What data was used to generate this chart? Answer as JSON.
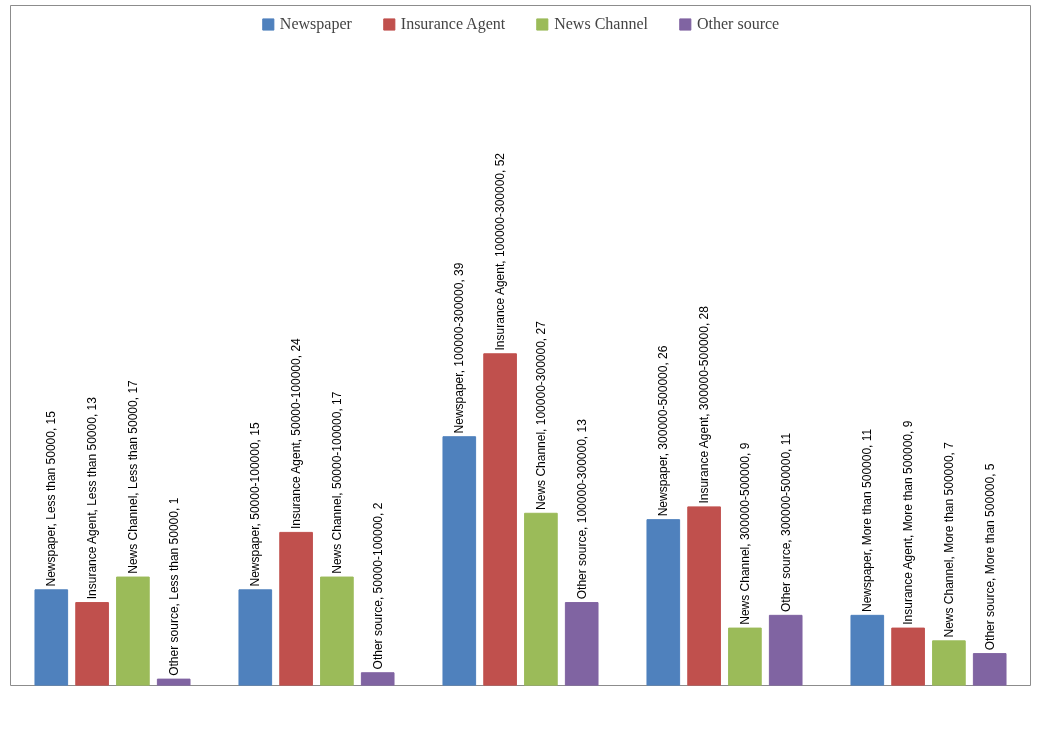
{
  "chart_data": {
    "type": "bar",
    "categories": [
      null,
      null,
      null,
      null,
      null
    ],
    "series": [
      {
        "name": "Newspaper",
        "color": "#4f81bd",
        "values": [
          15,
          15,
          39,
          26,
          11
        ],
        "value_labels": [
          "Newspaper, Less than 50000, 15",
          "Newspaper, 50000-100000, 15",
          "Newspaper, 100000-300000, 39",
          "Newspaper, 300000-500000, 26",
          "Newspaper, More than 500000, 11"
        ]
      },
      {
        "name": "Insurance Agent",
        "color": "#c0504d",
        "values": [
          13,
          24,
          52,
          28,
          9
        ],
        "value_labels": [
          "Insurance Agent, Less than 50000, 13",
          "Insurance Agent, 50000-100000, 24",
          "Insurance Agent, 100000-300000, 52",
          "Insurance Agent, 300000-500000, 28",
          "Insurance Agent, More than 500000, 9"
        ]
      },
      {
        "name": "News Channel",
        "color": "#9bbb59",
        "values": [
          17,
          17,
          27,
          9,
          7
        ],
        "value_labels": [
          "News Channel, Less than 50000, 17",
          "News Channel, 50000-100000, 17",
          "News Channel, 100000-300000, 27",
          "News Channel, 300000-500000, 9",
          "News Channel, More than 500000, 7"
        ]
      },
      {
        "name": "Other source",
        "color": "#8064a2",
        "values": [
          1,
          2,
          13,
          11,
          5
        ],
        "value_labels": [
          "Other source, Less than 50000, 1",
          "Other source, 50000-100000, 2",
          "Other source, 100000-300000, 13",
          "Other source, 300000-500000, 11",
          "Other source, More than 500000, 5"
        ]
      }
    ],
    "legend": "top",
    "grid": false,
    "tick_labels": false
  }
}
